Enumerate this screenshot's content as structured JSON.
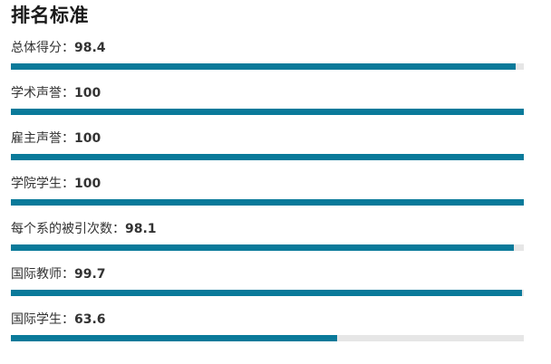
{
  "title": "排名标准",
  "separator": "：",
  "colors": {
    "bar_fill": "#0a7a9a",
    "bar_track": "#e6e6e6"
  },
  "metrics": [
    {
      "label": "总体得分",
      "value": "98.4"
    },
    {
      "label": "学术声誉",
      "value": "100"
    },
    {
      "label": "雇主声誉",
      "value": "100"
    },
    {
      "label": "学院学生",
      "value": "100"
    },
    {
      "label": "每个系的被引次数",
      "value": "98.1"
    },
    {
      "label": "国际教师",
      "value": "99.7"
    },
    {
      "label": "国际学生",
      "value": "63.6"
    }
  ]
}
